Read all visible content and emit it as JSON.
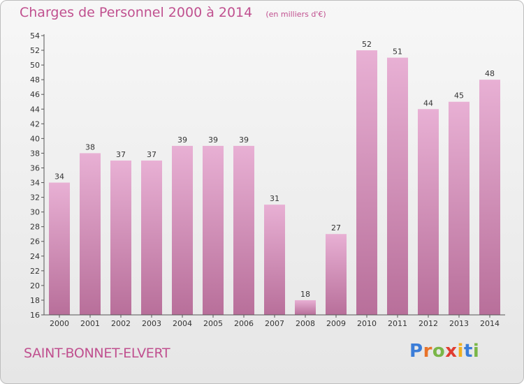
{
  "header": {
    "title": "Charges de Personnel 2000 à 2014",
    "subtitle": "(en milliers d'€)"
  },
  "commune_name": "SAINT-BONNET-ELVERT",
  "logo": {
    "letters": [
      "P",
      "r",
      "o",
      "x",
      "i",
      "t",
      "i"
    ],
    "colors": [
      "#3b7dd8",
      "#e8732a",
      "#7ab648",
      "#e03c31",
      "#f2b01e",
      "#3b7dd8",
      "#7ab648"
    ]
  },
  "chart_data": {
    "type": "bar",
    "categories": [
      "2000",
      "2001",
      "2002",
      "2003",
      "2004",
      "2005",
      "2006",
      "2007",
      "2008",
      "2009",
      "2010",
      "2011",
      "2012",
      "2013",
      "2014"
    ],
    "values": [
      34,
      38,
      37,
      37,
      39,
      39,
      39,
      31,
      18,
      27,
      52,
      51,
      44,
      45,
      48
    ],
    "xlabel": "",
    "ylabel": "",
    "ylim": [
      16,
      54
    ],
    "yticks": [
      16,
      18,
      20,
      22,
      24,
      26,
      28,
      30,
      32,
      34,
      36,
      38,
      40,
      42,
      44,
      46,
      48,
      50,
      52,
      54
    ],
    "grid": false,
    "bar_color_top": "#e8b0d4",
    "bar_color_bottom": "#b86f9a",
    "title_color": "#c0508f"
  }
}
